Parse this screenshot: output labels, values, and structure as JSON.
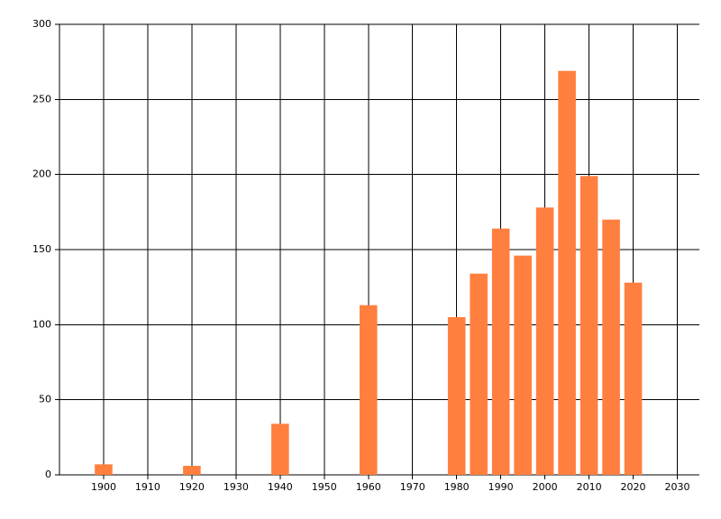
{
  "chart_data": {
    "type": "bar",
    "x": [
      1900,
      1920,
      1940,
      1960,
      1980,
      1985,
      1990,
      1995,
      2000,
      2005,
      2010,
      2015,
      2020
    ],
    "values": [
      7,
      6,
      34,
      113,
      105,
      134,
      164,
      146,
      178,
      269,
      199,
      170,
      128
    ],
    "color": "#ff7f3f",
    "xlim": [
      1890,
      2035
    ],
    "xticks": [
      1900,
      1910,
      1920,
      1930,
      1940,
      1950,
      1960,
      1970,
      1980,
      1990,
      2000,
      2010,
      2020,
      2030
    ],
    "ylim": [
      0,
      300
    ],
    "yticks": [
      0,
      50,
      100,
      150,
      200,
      250,
      300
    ],
    "grid": true
  }
}
